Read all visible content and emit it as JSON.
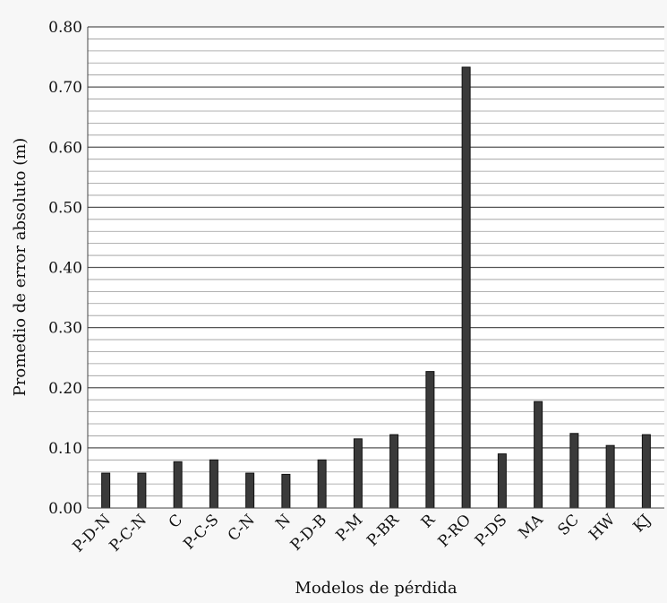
{
  "chart_data": {
    "type": "bar",
    "title": "",
    "xlabel": "Modelos de pérdida",
    "ylabel": "Promedio de error absoluto (m)",
    "ylim": [
      0,
      0.8
    ],
    "yticks": [
      "0.00",
      "0.10",
      "0.20",
      "0.30",
      "0.40",
      "0.50",
      "0.60",
      "0.70",
      "0.80"
    ],
    "categories": [
      "P-D-N",
      "P-C-N",
      "C",
      "P-C-S",
      "C-N",
      "N",
      "P-D-B",
      "P-M",
      "P-BR",
      "R",
      "P-RO",
      "P-DS",
      "MA",
      "SC",
      "HW",
      "KJ"
    ],
    "values": [
      0.058,
      0.058,
      0.077,
      0.08,
      0.058,
      0.056,
      0.08,
      0.115,
      0.122,
      0.227,
      0.733,
      0.09,
      0.177,
      0.124,
      0.104,
      0.122
    ],
    "grid": true,
    "minor_grid": true,
    "bar_color": "#3a3a3a"
  }
}
